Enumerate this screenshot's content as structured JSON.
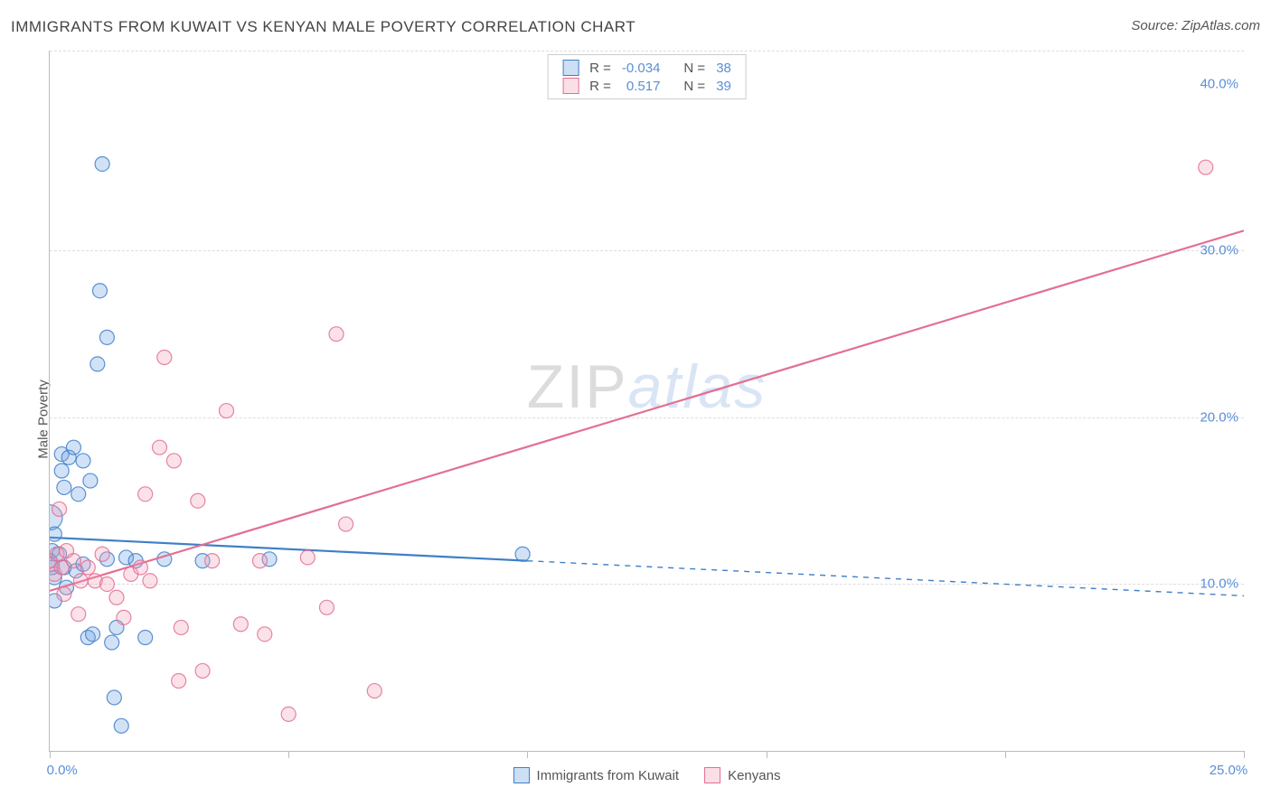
{
  "header": {
    "title": "IMMIGRANTS FROM KUWAIT VS KENYAN MALE POVERTY CORRELATION CHART",
    "source_prefix": "Source: ",
    "source_name": "ZipAtlas.com"
  },
  "chart": {
    "type": "scatter",
    "ylabel": "Male Poverty",
    "background_color": "#ffffff",
    "grid_color": "#dddddd",
    "axis_color": "#bbbbbb",
    "tick_label_color": "#5a8fd6",
    "xlim": [
      0,
      25
    ],
    "ylim": [
      0,
      42
    ],
    "xticks": [
      {
        "v": 0,
        "label": "0.0%"
      },
      {
        "v": 5,
        "label": ""
      },
      {
        "v": 10,
        "label": ""
      },
      {
        "v": 15,
        "label": ""
      },
      {
        "v": 20,
        "label": ""
      },
      {
        "v": 25,
        "label": "25.0%"
      }
    ],
    "yticks": [
      {
        "v": 10,
        "label": "10.0%"
      },
      {
        "v": 20,
        "label": "20.0%"
      },
      {
        "v": 30,
        "label": "30.0%"
      },
      {
        "v": 40,
        "label": "40.0%"
      }
    ],
    "yticks_grid": [
      10,
      20,
      30,
      42
    ],
    "marker_radius": 8,
    "marker_fill_opacity": 0.3,
    "marker_stroke_opacity": 0.85,
    "marker_stroke_width": 1.2,
    "series": [
      {
        "id": "kuwait",
        "label": "Immigrants from Kuwait",
        "color": "#6aa0e0",
        "stroke": "#3f7fc9",
        "R": "-0.034",
        "N": "38",
        "trend": {
          "solid_to_x": 10,
          "y_at_x0": 12.8,
          "y_at_xmax": 9.3,
          "width": 2.2
        },
        "points": [
          {
            "x": 0.0,
            "y": 14.0,
            "r": 14
          },
          {
            "x": 0.0,
            "y": 11.4
          },
          {
            "x": 0.05,
            "y": 11.0
          },
          {
            "x": 0.05,
            "y": 12.0
          },
          {
            "x": 0.1,
            "y": 10.4
          },
          {
            "x": 0.1,
            "y": 13.0
          },
          {
            "x": 0.1,
            "y": 9.0
          },
          {
            "x": 0.2,
            "y": 11.8
          },
          {
            "x": 0.25,
            "y": 16.8
          },
          {
            "x": 0.25,
            "y": 17.8
          },
          {
            "x": 0.3,
            "y": 15.8
          },
          {
            "x": 0.3,
            "y": 11.0
          },
          {
            "x": 0.35,
            "y": 9.8
          },
          {
            "x": 0.4,
            "y": 17.6
          },
          {
            "x": 0.5,
            "y": 18.2
          },
          {
            "x": 0.55,
            "y": 10.8
          },
          {
            "x": 0.6,
            "y": 15.4
          },
          {
            "x": 0.7,
            "y": 17.4
          },
          {
            "x": 0.7,
            "y": 11.2
          },
          {
            "x": 0.8,
            "y": 6.8
          },
          {
            "x": 0.85,
            "y": 16.2
          },
          {
            "x": 0.9,
            "y": 7.0
          },
          {
            "x": 1.0,
            "y": 23.2
          },
          {
            "x": 1.05,
            "y": 27.6
          },
          {
            "x": 1.1,
            "y": 35.2
          },
          {
            "x": 1.2,
            "y": 24.8
          },
          {
            "x": 1.2,
            "y": 11.5
          },
          {
            "x": 1.3,
            "y": 6.5
          },
          {
            "x": 1.35,
            "y": 3.2
          },
          {
            "x": 1.4,
            "y": 7.4
          },
          {
            "x": 1.5,
            "y": 1.5
          },
          {
            "x": 1.6,
            "y": 11.6
          },
          {
            "x": 1.8,
            "y": 11.4
          },
          {
            "x": 2.0,
            "y": 6.8
          },
          {
            "x": 2.4,
            "y": 11.5
          },
          {
            "x": 3.2,
            "y": 11.4
          },
          {
            "x": 4.6,
            "y": 11.5
          },
          {
            "x": 9.9,
            "y": 11.8
          }
        ]
      },
      {
        "id": "kenyan",
        "label": "Kenyans",
        "color": "#f29fb6",
        "stroke": "#e36f93",
        "R": "0.517",
        "N": "39",
        "trend": {
          "solid_to_x": 25,
          "y_at_x0": 9.6,
          "y_at_xmax": 31.2,
          "width": 2.2
        },
        "points": [
          {
            "x": 0.05,
            "y": 11.2
          },
          {
            "x": 0.1,
            "y": 10.6
          },
          {
            "x": 0.15,
            "y": 11.8
          },
          {
            "x": 0.2,
            "y": 14.5
          },
          {
            "x": 0.25,
            "y": 11.0
          },
          {
            "x": 0.3,
            "y": 9.4
          },
          {
            "x": 0.35,
            "y": 12.0
          },
          {
            "x": 0.5,
            "y": 11.4
          },
          {
            "x": 0.6,
            "y": 8.2
          },
          {
            "x": 0.65,
            "y": 10.2
          },
          {
            "x": 0.8,
            "y": 11.0
          },
          {
            "x": 0.95,
            "y": 10.2
          },
          {
            "x": 1.1,
            "y": 11.8
          },
          {
            "x": 1.2,
            "y": 10.0
          },
          {
            "x": 1.4,
            "y": 9.2
          },
          {
            "x": 1.55,
            "y": 8.0
          },
          {
            "x": 1.7,
            "y": 10.6
          },
          {
            "x": 1.9,
            "y": 11.0
          },
          {
            "x": 2.0,
            "y": 15.4
          },
          {
            "x": 2.1,
            "y": 10.2
          },
          {
            "x": 2.3,
            "y": 18.2
          },
          {
            "x": 2.4,
            "y": 23.6
          },
          {
            "x": 2.6,
            "y": 17.4
          },
          {
            "x": 2.7,
            "y": 4.2
          },
          {
            "x": 2.75,
            "y": 7.4
          },
          {
            "x": 3.1,
            "y": 15.0
          },
          {
            "x": 3.2,
            "y": 4.8
          },
          {
            "x": 3.4,
            "y": 11.4
          },
          {
            "x": 3.7,
            "y": 20.4
          },
          {
            "x": 4.0,
            "y": 7.6
          },
          {
            "x": 4.4,
            "y": 11.4
          },
          {
            "x": 4.5,
            "y": 7.0
          },
          {
            "x": 5.0,
            "y": 2.2
          },
          {
            "x": 5.4,
            "y": 11.6
          },
          {
            "x": 5.8,
            "y": 8.6
          },
          {
            "x": 6.0,
            "y": 25.0
          },
          {
            "x": 6.2,
            "y": 13.6
          },
          {
            "x": 6.8,
            "y": 3.6
          },
          {
            "x": 24.2,
            "y": 35.0
          }
        ]
      }
    ],
    "legend_top": {
      "R_label": "R =",
      "N_label": "N ="
    },
    "watermark": {
      "a": "ZIP",
      "b": "atlas"
    }
  }
}
